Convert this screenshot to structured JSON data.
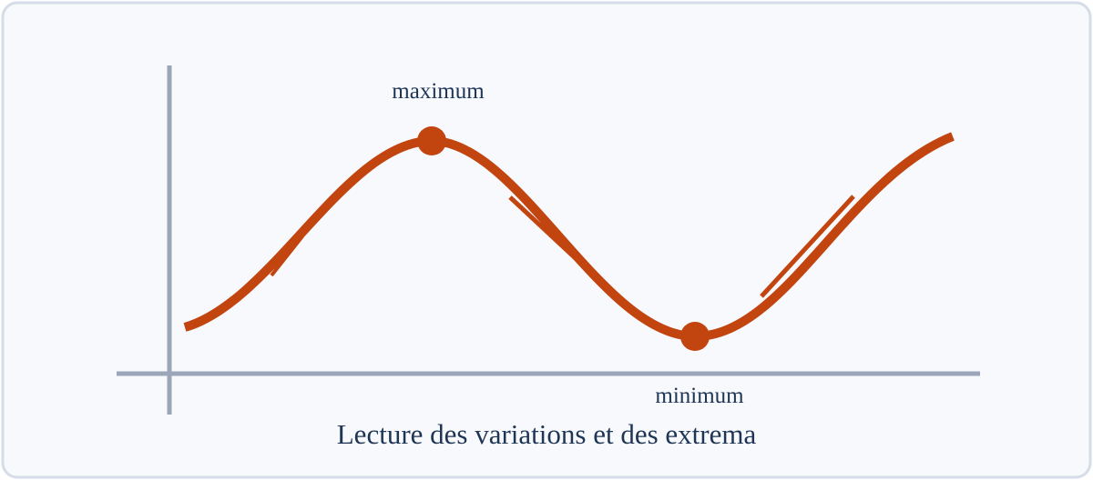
{
  "labels": {
    "maximum": "maximum",
    "minimum": "minimum"
  },
  "caption": "Lecture des variations et des extrema"
}
